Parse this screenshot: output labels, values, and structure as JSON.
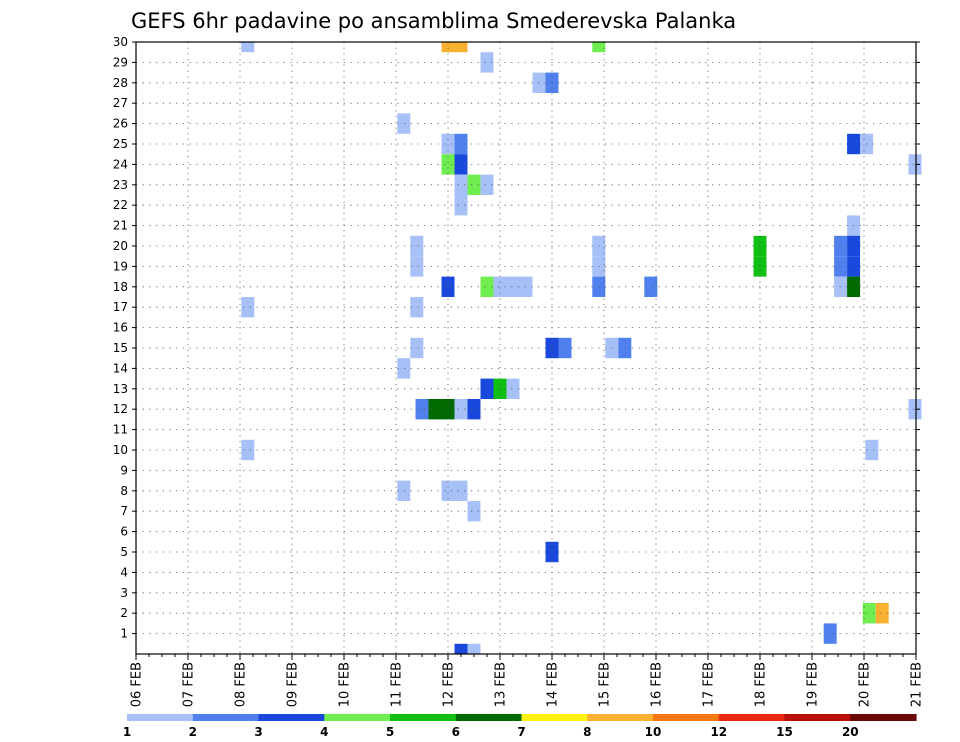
{
  "chart_data": {
    "type": "heatmap",
    "title": "GEFS 6hr padavine po ansamblima Smederevska Palanka",
    "xlabel": "",
    "ylabel": "",
    "x_ticks": [
      "06 FEB",
      "07 FEB",
      "08 FEB",
      "09 FEB",
      "10 FEB",
      "11 FEB",
      "12 FEB",
      "13 FEB",
      "14 FEB",
      "15 FEB",
      "16 FEB",
      "17 FEB",
      "18 FEB",
      "19 FEB",
      "20 FEB",
      "21 FEB"
    ],
    "x_range": [
      0,
      15
    ],
    "y_ticks": [
      1,
      2,
      3,
      4,
      5,
      6,
      7,
      8,
      9,
      10,
      11,
      12,
      13,
      14,
      15,
      16,
      17,
      18,
      19,
      20,
      21,
      22,
      23,
      24,
      25,
      26,
      27,
      28,
      29,
      30
    ],
    "y_range": [
      0,
      30
    ],
    "grid": true,
    "legend": {
      "placement": "bottom",
      "boundaries": [
        "1",
        "2",
        "3",
        "4",
        "5",
        "6",
        "7",
        "8",
        "10",
        "12",
        "15",
        "20"
      ],
      "colors": [
        "#a8c0f8",
        "#5080ee",
        "#1848dc",
        "#70ee50",
        "#10c010",
        "#006a00",
        "#fff010",
        "#fab030",
        "#f87810",
        "#ea2810",
        "#b81008",
        "#6c0804"
      ]
    },
    "cells": [
      {
        "member": 30,
        "day": 2.15,
        "level": 1
      },
      {
        "member": 30,
        "day": 6.0,
        "level": 8
      },
      {
        "member": 30,
        "day": 6.25,
        "level": 8
      },
      {
        "member": 30,
        "day": 8.9,
        "level": 4
      },
      {
        "member": 29,
        "day": 6.75,
        "level": 1
      },
      {
        "member": 28,
        "day": 7.75,
        "level": 1
      },
      {
        "member": 28,
        "day": 8.0,
        "level": 2
      },
      {
        "member": 26,
        "day": 5.15,
        "level": 1
      },
      {
        "member": 25,
        "day": 6.0,
        "level": 1
      },
      {
        "member": 25,
        "day": 6.25,
        "level": 2
      },
      {
        "member": 25,
        "day": 13.8,
        "level": 3
      },
      {
        "member": 25,
        "day": 14.05,
        "level": 1
      },
      {
        "member": 24,
        "day": 6.0,
        "level": 4
      },
      {
        "member": 24,
        "day": 6.25,
        "level": 3
      },
      {
        "member": 24,
        "day": 14.98,
        "level": 1
      },
      {
        "member": 23,
        "day": 6.25,
        "level": 1
      },
      {
        "member": 23,
        "day": 6.5,
        "level": 4
      },
      {
        "member": 23,
        "day": 6.75,
        "level": 1
      },
      {
        "member": 22,
        "day": 6.25,
        "level": 1
      },
      {
        "member": 21,
        "day": 13.8,
        "level": 1
      },
      {
        "member": 20,
        "day": 5.4,
        "level": 1
      },
      {
        "member": 20,
        "day": 8.9,
        "level": 1
      },
      {
        "member": 20,
        "day": 12.0,
        "level": 5
      },
      {
        "member": 20,
        "day": 13.55,
        "level": 2
      },
      {
        "member": 20,
        "day": 13.8,
        "level": 3
      },
      {
        "member": 19,
        "day": 5.4,
        "level": 1
      },
      {
        "member": 19,
        "day": 8.9,
        "level": 1
      },
      {
        "member": 19,
        "day": 12.0,
        "level": 5
      },
      {
        "member": 19,
        "day": 13.55,
        "level": 2
      },
      {
        "member": 19,
        "day": 13.8,
        "level": 3
      },
      {
        "member": 18,
        "day": 6.0,
        "level": 3
      },
      {
        "member": 18,
        "day": 6.75,
        "level": 4
      },
      {
        "member": 18,
        "day": 7.0,
        "level": 1
      },
      {
        "member": 18,
        "day": 7.25,
        "level": 1
      },
      {
        "member": 18,
        "day": 7.5,
        "level": 1
      },
      {
        "member": 18,
        "day": 8.9,
        "level": 2
      },
      {
        "member": 18,
        "day": 9.9,
        "level": 2
      },
      {
        "member": 18,
        "day": 13.55,
        "level": 1
      },
      {
        "member": 18,
        "day": 13.8,
        "level": 6
      },
      {
        "member": 17,
        "day": 2.15,
        "level": 1
      },
      {
        "member": 17,
        "day": 5.4,
        "level": 1
      },
      {
        "member": 15,
        "day": 5.4,
        "level": 1
      },
      {
        "member": 15,
        "day": 8.0,
        "level": 3
      },
      {
        "member": 15,
        "day": 8.25,
        "level": 2
      },
      {
        "member": 15,
        "day": 9.15,
        "level": 1
      },
      {
        "member": 15,
        "day": 9.4,
        "level": 2
      },
      {
        "member": 14,
        "day": 5.15,
        "level": 1
      },
      {
        "member": 13,
        "day": 6.75,
        "level": 3
      },
      {
        "member": 13,
        "day": 7.0,
        "level": 5
      },
      {
        "member": 13,
        "day": 7.25,
        "level": 1
      },
      {
        "member": 12,
        "day": 5.5,
        "level": 2
      },
      {
        "member": 12,
        "day": 5.75,
        "level": 6
      },
      {
        "member": 12,
        "day": 6.0,
        "level": 6
      },
      {
        "member": 12,
        "day": 6.25,
        "level": 1
      },
      {
        "member": 12,
        "day": 6.5,
        "level": 3
      },
      {
        "member": 12,
        "day": 14.98,
        "level": 1
      },
      {
        "member": 10,
        "day": 2.15,
        "level": 1
      },
      {
        "member": 10,
        "day": 14.15,
        "level": 1
      },
      {
        "member": 8,
        "day": 5.15,
        "level": 1
      },
      {
        "member": 8,
        "day": 6.0,
        "level": 1
      },
      {
        "member": 8,
        "day": 6.25,
        "level": 1
      },
      {
        "member": 7,
        "day": 6.5,
        "level": 1
      },
      {
        "member": 5,
        "day": 8.0,
        "level": 3
      },
      {
        "member": 2,
        "day": 14.1,
        "level": 4
      },
      {
        "member": 2,
        "day": 14.35,
        "level": 8
      },
      {
        "member": 1,
        "day": 13.35,
        "level": 2
      },
      {
        "member": 0,
        "day": 6.25,
        "level": 3
      },
      {
        "member": 0,
        "day": 6.5,
        "level": 1
      }
    ]
  }
}
